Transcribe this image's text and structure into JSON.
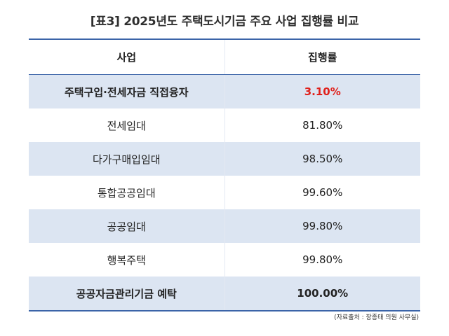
{
  "title": "[표3] 2025년도 주택도시기금 주요 사업 집행률 비교",
  "table": {
    "headers": [
      "사업",
      "집행률"
    ],
    "rows": [
      {
        "name": "주택구입·전세자금 직접융자",
        "rate": "3.10%"
      },
      {
        "name": "전세임대",
        "rate": "81.80%"
      },
      {
        "name": "다가구매입임대",
        "rate": "98.50%"
      },
      {
        "name": "통합공공임대",
        "rate": "99.60%"
      },
      {
        "name": "공공임대",
        "rate": "99.80%"
      },
      {
        "name": "행복주택",
        "rate": "99.80%"
      },
      {
        "name": "공공자금관리기금 예탁",
        "rate": "100.00%"
      }
    ]
  },
  "source": "(자료출처 : 장종태 의원 사무실)",
  "colors": {
    "header_rule": "#3b64a8",
    "stripe": "#dce5f2",
    "highlight": "#e0201b"
  }
}
